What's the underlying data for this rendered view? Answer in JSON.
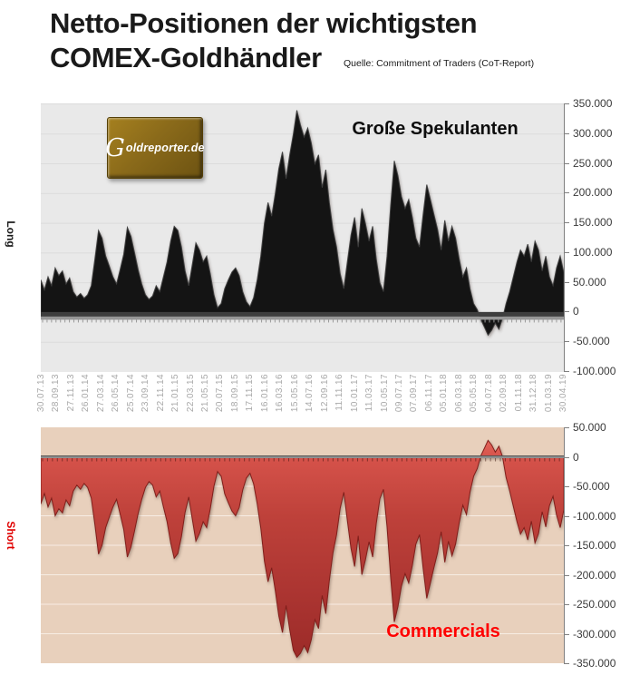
{
  "title": {
    "line1": "Netto-Positionen der wichtigsten",
    "line2": "COMEX-Goldhändler",
    "source": "Quelle: Commitment of Traders (CoT-Report)"
  },
  "logo": {
    "text_g": "G",
    "text_rest": "oldreporter.de"
  },
  "top_chart": {
    "series_label": "Große Spekulanten",
    "side_label": "Long"
  },
  "bottom_chart": {
    "series_label": "Commercials",
    "side_label": "Short"
  },
  "x_axis_dates": [
    "30.07.13",
    "28.09.13",
    "27.11.13",
    "26.01.14",
    "27.03.14",
    "26.05.14",
    "25.07.14",
    "23.09.14",
    "22.11.14",
    "21.01.15",
    "22.03.15",
    "21.05.15",
    "20.07.15",
    "18.09.15",
    "17.11.15",
    "16.01.16",
    "16.03.16",
    "15.05.16",
    "14.07.16",
    "12.09.16",
    "11.11.16",
    "10.01.17",
    "11.03.17",
    "10.05.17",
    "09.07.17",
    "07.09.17",
    "06.11.17",
    "05.01.18",
    "06.03.18",
    "05.05.18",
    "04.07.18",
    "02.09.18",
    "01.11.18",
    "31.12.18",
    "01.03.19",
    "30.04.19"
  ],
  "chart_data": [
    {
      "type": "area",
      "name": "Große Spekulanten",
      "role": "top",
      "unit": "contracts (net position)",
      "x_first": "30.07.13",
      "x_last": "30.04.19",
      "ylim": [
        -100000,
        350000
      ],
      "grid": true,
      "legend_position": "inside-top-right",
      "y_tick_labels": [
        "350.000",
        "300.000",
        "250.000",
        "200.000",
        "150.000",
        "100.000",
        "50.000",
        "0",
        "-50.000",
        "-100.000"
      ],
      "background": "#E9E9E9",
      "grid_color": "#DCDCDC",
      "series_color": "#141414",
      "stroke_color": "#3F3F3F",
      "values_thousands": [
        55,
        38,
        60,
        45,
        75,
        62,
        70,
        48,
        58,
        35,
        26,
        32,
        24,
        30,
        45,
        90,
        138,
        125,
        95,
        78,
        60,
        48,
        72,
        98,
        143,
        128,
        100,
        72,
        48,
        30,
        22,
        28,
        45,
        35,
        60,
        85,
        120,
        145,
        138,
        110,
        70,
        45,
        80,
        117,
        105,
        85,
        95,
        65,
        30,
        8,
        15,
        40,
        55,
        68,
        75,
        62,
        35,
        18,
        10,
        25,
        55,
        95,
        150,
        185,
        162,
        200,
        242,
        270,
        225,
        265,
        300,
        340,
        315,
        295,
        310,
        285,
        250,
        265,
        210,
        240,
        185,
        140,
        110,
        65,
        40,
        85,
        130,
        160,
        110,
        175,
        150,
        120,
        145,
        90,
        50,
        35,
        95,
        180,
        255,
        230,
        195,
        175,
        190,
        160,
        125,
        110,
        165,
        215,
        190,
        165,
        140,
        105,
        155,
        120,
        145,
        125,
        90,
        60,
        75,
        40,
        15,
        5,
        -12,
        -25,
        -38,
        -30,
        -18,
        -28,
        -10,
        15,
        35,
        60,
        85,
        105,
        95,
        115,
        85,
        120,
        105,
        70,
        95,
        60,
        45,
        75,
        95,
        67
      ]
    },
    {
      "type": "area",
      "name": "Commercials",
      "role": "bottom",
      "unit": "contracts (net position)",
      "x_first": "30.07.13",
      "x_last": "30.04.19",
      "ylim": [
        -350000,
        50000
      ],
      "grid": true,
      "legend_position": "inside-bottom-center",
      "y_tick_labels": [
        "50.000",
        "0",
        "-50.000",
        "-100.000",
        "-150.000",
        "-200.000",
        "-250.000",
        "-300.000",
        "-350.000"
      ],
      "background": "#E8D0BC",
      "grid_color": "#F7EDE4",
      "series_color": "#BE413A",
      "stroke_color": "#801F1B",
      "values_thousands": [
        -80,
        -62,
        -85,
        -70,
        -100,
        -88,
        -95,
        -73,
        -83,
        -58,
        -48,
        -55,
        -45,
        -52,
        -70,
        -115,
        -165,
        -150,
        -120,
        -102,
        -85,
        -72,
        -97,
        -123,
        -170,
        -153,
        -125,
        -96,
        -72,
        -52,
        -42,
        -48,
        -68,
        -58,
        -85,
        -110,
        -146,
        -172,
        -164,
        -135,
        -94,
        -68,
        -105,
        -143,
        -130,
        -110,
        -120,
        -88,
        -50,
        -25,
        -33,
        -63,
        -78,
        -92,
        -100,
        -86,
        -56,
        -36,
        -28,
        -46,
        -80,
        -121,
        -177,
        -212,
        -188,
        -227,
        -270,
        -298,
        -252,
        -293,
        -328,
        -340,
        -333,
        -320,
        -332,
        -310,
        -276,
        -291,
        -235,
        -266,
        -210,
        -163,
        -132,
        -87,
        -60,
        -108,
        -155,
        -186,
        -134,
        -200,
        -175,
        -144,
        -170,
        -113,
        -71,
        -55,
        -119,
        -205,
        -280,
        -254,
        -219,
        -198,
        -214,
        -184,
        -148,
        -132,
        -189,
        -240,
        -214,
        -188,
        -163,
        -127,
        -179,
        -143,
        -168,
        -148,
        -112,
        -82,
        -98,
        -60,
        -33,
        -20,
        2,
        15,
        28,
        20,
        8,
        18,
        0,
        -35,
        -58,
        -84,
        -110,
        -131,
        -120,
        -141,
        -109,
        -146,
        -130,
        -93,
        -119,
        -83,
        -67,
        -99,
        -120,
        -90
      ]
    }
  ],
  "colors": {
    "title_text": "#1A1A1A",
    "axis_text": "#3A3A3A",
    "axis_line": "#808080",
    "date_text": "#A8A8A8",
    "long_label": "#1A1A1A",
    "short_label": "#E00000",
    "commercials_label": "#FF0000",
    "logo_gold": "#8A6A1A",
    "zero_band_dark": "#3E3E3E",
    "zero_band_gray": "#979797"
  }
}
